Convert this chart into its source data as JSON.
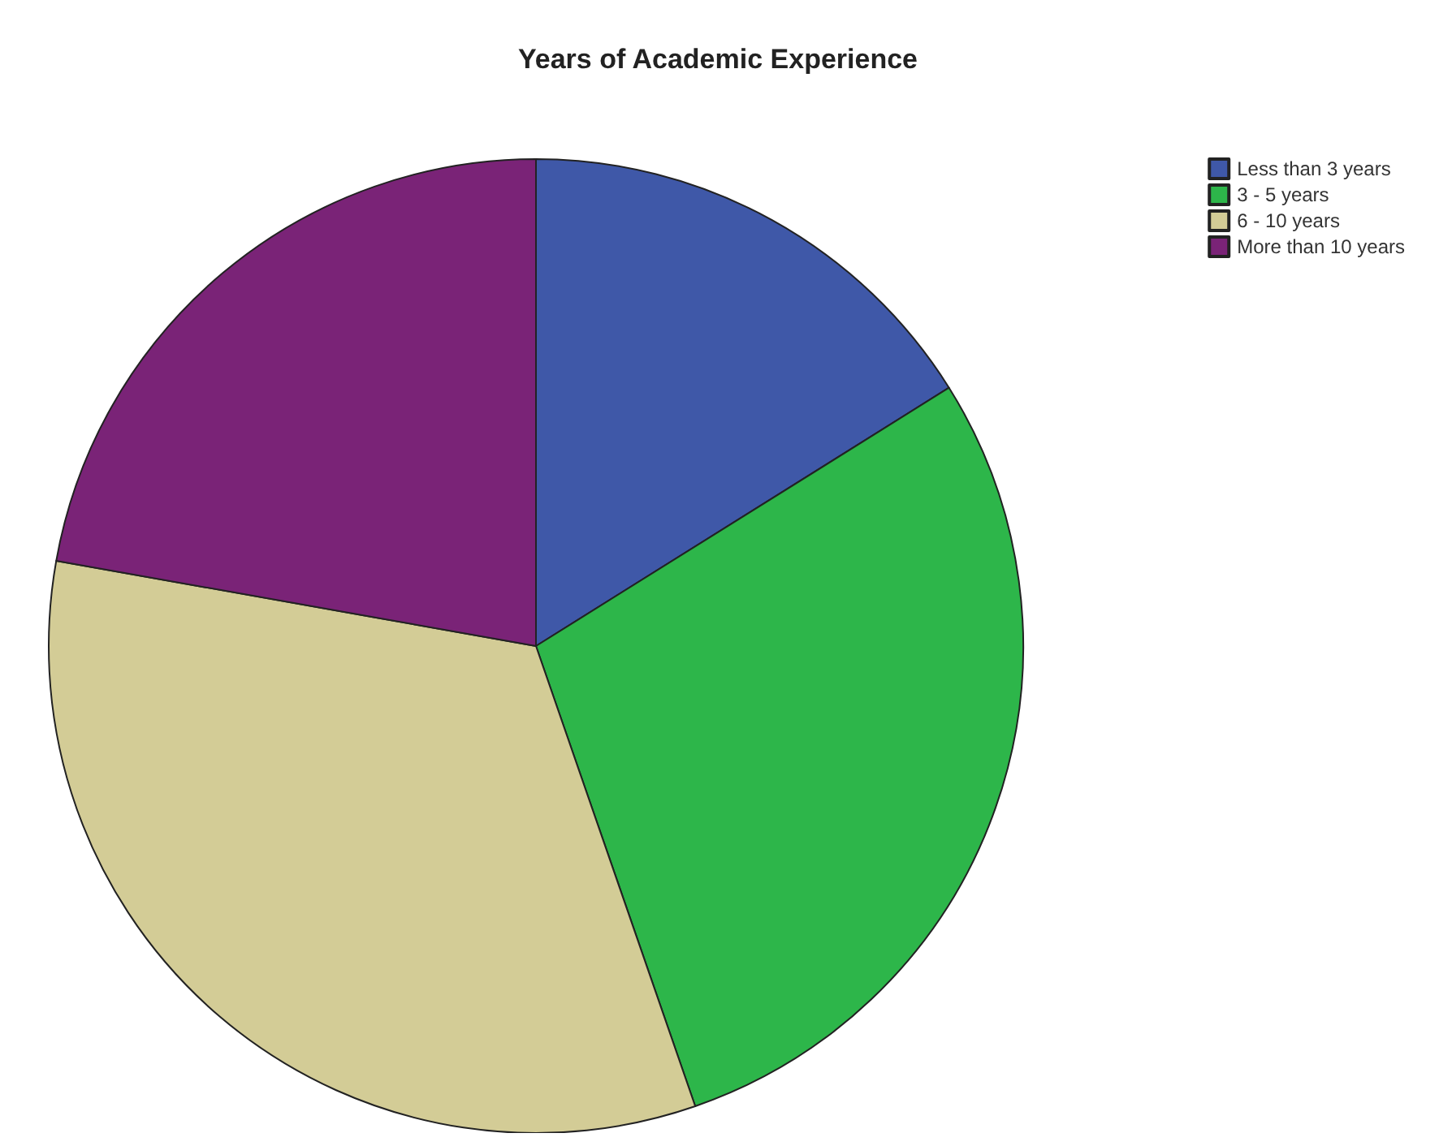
{
  "chart_data": {
    "type": "pie",
    "title": "Years of Academic Experience",
    "categories": [
      "Less than 3 years",
      "3 - 5 years",
      "6 - 10 years",
      "More than 10 years"
    ],
    "values": [
      16.1,
      28.6,
      33.1,
      22.2
    ],
    "colors": [
      "#3f58a8",
      "#2db64a",
      "#d3cc96",
      "#7a2377"
    ],
    "legend": "top right"
  }
}
